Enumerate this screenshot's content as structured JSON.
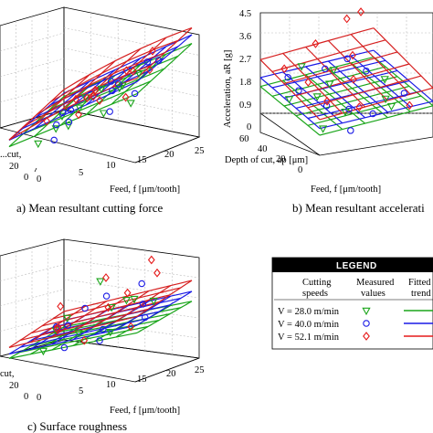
{
  "chart_data": [
    {
      "panel": "a",
      "type": "scatter",
      "caption": "a) Mean resultant cutting force",
      "xlabel": "Feed, f [μm/tooth]",
      "xticks": [
        "0",
        "5",
        "10",
        "15",
        "20",
        "25"
      ],
      "ylabel": "...cut,",
      "yticks": [
        "20",
        "0"
      ],
      "xlim": [
        0,
        25
      ],
      "series": [
        {
          "values": [
            [
              2,
              40,
              0.15
            ],
            [
              5,
              30,
              0.3
            ],
            [
              8,
              20,
              0.25
            ],
            [
              12,
              10,
              0.45
            ],
            [
              15,
              40,
              0.55
            ],
            [
              18,
              20,
              0.6
            ],
            [
              20,
              30,
              0.7
            ],
            [
              22,
              10,
              0.5
            ],
            [
              6,
              50,
              0.4
            ],
            [
              10,
              45,
              0.5
            ],
            [
              14,
              25,
              0.35
            ],
            [
              3,
              15,
              0.1
            ]
          ]
        },
        {
          "values": [
            [
              3,
              35,
              0.2
            ],
            [
              6,
              25,
              0.35
            ],
            [
              9,
              15,
              0.3
            ],
            [
              13,
              40,
              0.5
            ],
            [
              16,
              30,
              0.6
            ],
            [
              19,
              45,
              0.75
            ],
            [
              21,
              20,
              0.55
            ],
            [
              23,
              35,
              0.8
            ],
            [
              7,
              10,
              0.15
            ],
            [
              11,
              50,
              0.55
            ],
            [
              17,
              15,
              0.4
            ],
            [
              4,
              45,
              0.3
            ]
          ]
        },
        {
          "values": [
            [
              2,
              30,
              0.25
            ],
            [
              5,
              45,
              0.4
            ],
            [
              9,
              35,
              0.45
            ],
            [
              12,
              25,
              0.5
            ],
            [
              15,
              15,
              0.5
            ],
            [
              18,
              35,
              0.7
            ],
            [
              20,
              45,
              0.85
            ],
            [
              23,
              25,
              0.75
            ],
            [
              7,
              55,
              0.45
            ],
            [
              10,
              20,
              0.35
            ],
            [
              14,
              50,
              0.65
            ],
            [
              21,
              10,
              0.55
            ]
          ]
        }
      ]
    },
    {
      "panel": "b",
      "type": "scatter",
      "caption": "b) Mean resultant accelerati",
      "xlabel": "Feed, f [μm/tooth]",
      "ylabel_main": "Acceleration, aR [g]",
      "ylabel_depth": "Depth of cut, ap [μm]",
      "zticks": [
        "0",
        "0.9",
        "1.8",
        "2.7",
        "3.6",
        "4.5"
      ],
      "depthticks": [
        "60",
        "40",
        "20",
        "0"
      ],
      "zlim": [
        0,
        4.5
      ],
      "series": [
        {
          "values": [
            [
              2,
              40,
              1.2
            ],
            [
              6,
              30,
              1.5
            ],
            [
              10,
              20,
              1.0
            ],
            [
              14,
              50,
              1.8
            ],
            [
              18,
              10,
              1.3
            ],
            [
              22,
              35,
              1.6
            ],
            [
              4,
              15,
              0.6
            ],
            [
              12,
              45,
              1.4
            ],
            [
              20,
              25,
              1.1
            ],
            [
              8,
              55,
              2.0
            ]
          ]
        },
        {
          "values": [
            [
              3,
              35,
              1.7
            ],
            [
              7,
              25,
              1.2
            ],
            [
              11,
              45,
              2.1
            ],
            [
              15,
              15,
              0.9
            ],
            [
              19,
              40,
              1.9
            ],
            [
              23,
              20,
              1.4
            ],
            [
              5,
              55,
              1.6
            ],
            [
              13,
              30,
              0.7
            ],
            [
              17,
              50,
              2.2
            ],
            [
              9,
              10,
              0.5
            ]
          ]
        },
        {
          "values": [
            [
              2,
              45,
              2.4
            ],
            [
              6,
              20,
              1.6
            ],
            [
              10,
              50,
              3.1
            ],
            [
              14,
              30,
              2.0
            ],
            [
              18,
              55,
              3.8
            ],
            [
              22,
              10,
              1.2
            ],
            [
              4,
              30,
              2.2
            ],
            [
              12,
              15,
              1.3
            ],
            [
              16,
              40,
              2.7
            ],
            [
              20,
              50,
              4.2
            ]
          ]
        }
      ]
    },
    {
      "panel": "c",
      "type": "scatter",
      "caption": "c) Surface roughness",
      "xlabel": "Feed, f [μm/tooth]",
      "xticks": [
        "0",
        "5",
        "10",
        "15",
        "20",
        "25"
      ],
      "ylabel": "cut,",
      "yticks": [
        "20",
        "0"
      ],
      "xlim": [
        0,
        25
      ],
      "series": [
        {
          "values": [
            [
              2,
              40,
              0.3
            ],
            [
              6,
              30,
              0.45
            ],
            [
              10,
              20,
              0.35
            ],
            [
              14,
              50,
              0.55
            ],
            [
              18,
              10,
              0.4
            ],
            [
              22,
              35,
              0.6
            ],
            [
              4,
              15,
              0.2
            ],
            [
              12,
              45,
              0.5
            ],
            [
              20,
              25,
              0.65
            ],
            [
              8,
              55,
              0.7
            ]
          ]
        },
        {
          "values": [
            [
              3,
              35,
              0.35
            ],
            [
              7,
              25,
              0.4
            ],
            [
              11,
              45,
              0.6
            ],
            [
              15,
              15,
              0.3
            ],
            [
              19,
              40,
              0.55
            ],
            [
              23,
              20,
              0.5
            ],
            [
              5,
              55,
              0.45
            ],
            [
              13,
              30,
              0.35
            ],
            [
              17,
              50,
              0.7
            ],
            [
              9,
              10,
              0.25
            ]
          ]
        },
        {
          "values": [
            [
              2,
              45,
              0.5
            ],
            [
              6,
              20,
              0.4
            ],
            [
              10,
              50,
              0.75
            ],
            [
              14,
              30,
              0.55
            ],
            [
              18,
              55,
              0.9
            ],
            [
              22,
              10,
              0.45
            ],
            [
              4,
              30,
              0.35
            ],
            [
              12,
              15,
              0.3
            ],
            [
              16,
              40,
              0.65
            ],
            [
              20,
              50,
              0.8
            ]
          ]
        }
      ]
    }
  ],
  "legend": {
    "title": "LEGEND",
    "col_speed": [
      "Cutting",
      "speeds"
    ],
    "col_measured": [
      "Measured",
      "values"
    ],
    "col_fitted": [
      "Fitted",
      "trend"
    ],
    "rows": [
      {
        "label": "V = 28.0 m/min",
        "color": "#1aa51a",
        "marker": "triangle-down"
      },
      {
        "label": "V = 40.0 m/min",
        "color": "#1a1ae6",
        "marker": "circle"
      },
      {
        "label": "V = 52.1 m/min",
        "color": "#e61a1a",
        "marker": "diamond"
      }
    ]
  },
  "colors": {
    "green": "#1aa51a",
    "blue": "#1a1ae6",
    "red": "#e61a1a"
  }
}
